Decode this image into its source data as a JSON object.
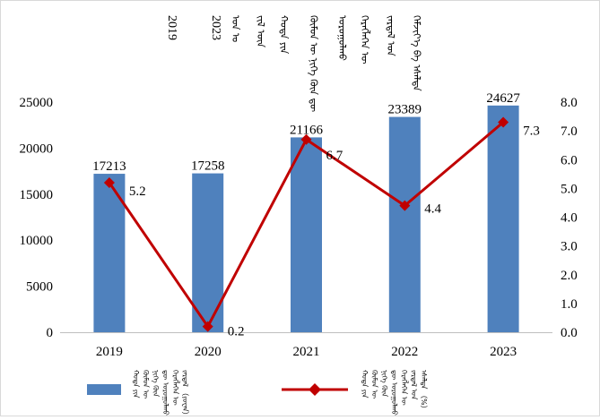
{
  "chart_data": {
    "type": "bar",
    "title_lines": [
      "2019",
      "2023",
      "ᠣᠨ ᠤ",
      "ᠵᠢᠯ ᠦᠨ",
      "ᠬᠣᠲᠠ ᠶᠢᠨ",
      "ᠬᠦᠮᠦᠨ ᠦ ᠨᠢᠭᠡ ᠬᠦᠨ ᠳᠦ",
      "ᠤᠷᠤᠭᠤᠯᠬᠤ",
      "ᠬᠡᠷᠡᠭᠯᠡᠭᠡᠨ ᠦ",
      "ᠵᠠᠷᠳᠠᠯ ᠤᠨ",
      "ᠬᠡᠮᠵᠢᠶ᠎ᠡ ᠪᠠ ᠡᠰᠡᠯᠲᠡ"
    ],
    "categories": [
      "2019",
      "2020",
      "2021",
      "2022",
      "2023"
    ],
    "series": [
      {
        "name": "ᠬᠣᠲᠠ ᠶᠢᠨ ᠬᠦᠮᠦᠨ ᠦ ᠨᠢᠭᠡ ᠬᠦᠨ ᠳᠦ ᠤᠷᠤᠭᠤᠯᠬᠤ ᠬᠡᠷᠡᠭᠯᠡᠭᠡᠨ ᠦ ᠵᠠᠷᠳᠠᠯ （ᠶᠤᠸᠠᠨ）",
        "type": "bar",
        "axis": "left",
        "color": "#4f81bd",
        "values": [
          17213,
          17258,
          21166,
          23389,
          24627
        ],
        "labels": [
          "17213",
          "17258",
          "21166",
          "23389",
          "24627"
        ]
      },
      {
        "name": "ᠬᠣᠲᠠ ᠶᠢᠨ ᠬᠦᠮᠦᠨ ᠦ ᠨᠢᠭᠡ ᠬᠦᠨ ᠳᠦ ᠤᠷᠤᠭᠤᠯᠬᠤ ᠬᠡᠷᠡᠭᠯᠡᠭᠡᠨ ᠦ ᠵᠠᠷᠳᠠᠯ ᠤᠨ ᠡᠰᠡᠯᠲᠡ （%）",
        "type": "line",
        "axis": "right",
        "color": "#c00000",
        "values": [
          5.2,
          0.2,
          6.7,
          4.4,
          7.3
        ],
        "labels": [
          "5.2",
          "0.2",
          "6.7",
          "4.4",
          "7.3"
        ]
      }
    ],
    "y_left": {
      "ylim": [
        0,
        25000
      ],
      "ticks": [
        "0",
        "5000",
        "10000",
        "15000",
        "20000",
        "25000"
      ]
    },
    "y_right": {
      "ylim": [
        0,
        8
      ],
      "ticks": [
        "0.0",
        "1.0",
        "2.0",
        "3.0",
        "4.0",
        "5.0",
        "6.0",
        "7.0",
        "8.0"
      ]
    },
    "grid": false,
    "legend_position": "bottom"
  }
}
